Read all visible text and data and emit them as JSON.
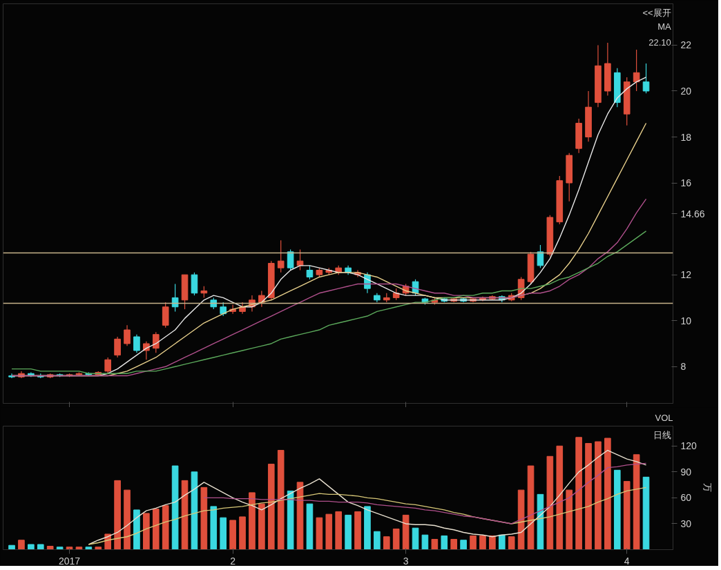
{
  "chart_data": [
    {
      "type": "candlestick",
      "annotations": [
        "<<展开",
        "MA",
        "22.10"
      ],
      "categories": [
        null,
        null,
        null,
        null,
        null,
        null,
        "2017",
        null,
        null,
        null,
        null,
        null,
        null,
        null,
        null,
        null,
        null,
        null,
        null,
        null,
        null,
        null,
        null,
        "2",
        null,
        null,
        null,
        null,
        null,
        null,
        null,
        null,
        null,
        null,
        null,
        null,
        null,
        null,
        null,
        null,
        null,
        "3",
        null,
        null,
        null,
        null,
        null,
        null,
        null,
        null,
        null,
        null,
        null,
        null,
        null,
        null,
        null,
        null,
        null,
        null,
        null,
        null,
        null,
        null,
        "4",
        null,
        null
      ],
      "ohlc": [
        [
          7.6,
          7.7,
          7.5,
          7.55
        ],
        [
          7.55,
          7.8,
          7.5,
          7.7
        ],
        [
          7.7,
          7.75,
          7.55,
          7.6
        ],
        [
          7.6,
          7.7,
          7.5,
          7.55
        ],
        [
          7.55,
          7.7,
          7.5,
          7.65
        ],
        [
          7.65,
          7.7,
          7.55,
          7.6
        ],
        [
          7.6,
          7.7,
          7.55,
          7.65
        ],
        [
          7.65,
          7.75,
          7.6,
          7.7
        ],
        [
          7.7,
          7.75,
          7.6,
          7.65
        ],
        [
          7.65,
          7.8,
          7.6,
          7.75
        ],
        [
          7.8,
          8.4,
          7.7,
          8.3
        ],
        [
          8.5,
          9.3,
          8.4,
          9.2
        ],
        [
          9.0,
          9.8,
          8.9,
          9.6
        ],
        [
          9.3,
          9.4,
          8.6,
          8.7
        ],
        [
          8.7,
          9.1,
          8.3,
          9.0
        ],
        [
          8.8,
          9.5,
          8.6,
          9.4
        ],
        [
          9.8,
          10.8,
          9.7,
          10.6
        ],
        [
          11.0,
          11.6,
          10.4,
          10.6
        ],
        [
          10.9,
          12.0,
          10.5,
          12.0
        ],
        [
          12.0,
          12.1,
          11.1,
          11.2
        ],
        [
          11.2,
          11.5,
          11.0,
          11.3
        ],
        [
          10.9,
          11.0,
          10.5,
          10.6
        ],
        [
          10.6,
          10.8,
          10.2,
          10.3
        ],
        [
          10.4,
          10.7,
          10.3,
          10.5
        ],
        [
          10.4,
          10.8,
          10.3,
          10.6
        ],
        [
          10.6,
          11.1,
          10.4,
          10.9
        ],
        [
          10.8,
          11.3,
          10.6,
          11.1
        ],
        [
          11.0,
          12.6,
          10.9,
          12.5
        ],
        [
          12.3,
          13.5,
          12.1,
          12.6
        ],
        [
          13.0,
          13.1,
          12.2,
          12.3
        ],
        [
          12.4,
          13.1,
          12.2,
          12.6
        ],
        [
          12.2,
          12.4,
          11.8,
          11.9
        ],
        [
          12.0,
          12.3,
          11.9,
          12.2
        ],
        [
          12.1,
          12.3,
          12.0,
          12.2
        ],
        [
          12.1,
          12.4,
          12.0,
          12.3
        ],
        [
          12.3,
          12.4,
          12.0,
          12.1
        ],
        [
          12.0,
          12.2,
          11.9,
          12.1
        ],
        [
          12.0,
          12.1,
          11.2,
          11.4
        ],
        [
          11.1,
          11.2,
          10.8,
          10.9
        ],
        [
          10.9,
          11.2,
          10.8,
          11.0
        ],
        [
          11.0,
          11.4,
          10.9,
          11.2
        ],
        [
          11.2,
          11.6,
          11.1,
          11.5
        ],
        [
          11.7,
          11.8,
          11.1,
          11.2
        ],
        [
          10.95,
          11.0,
          10.7,
          10.8
        ],
        [
          10.8,
          11.0,
          10.7,
          10.9
        ],
        [
          10.95,
          11.0,
          10.8,
          10.85
        ],
        [
          10.85,
          11.0,
          10.8,
          10.95
        ],
        [
          10.95,
          11.0,
          10.8,
          10.85
        ],
        [
          10.85,
          11.0,
          10.8,
          10.95
        ],
        [
          10.9,
          11.05,
          10.85,
          11.0
        ],
        [
          10.95,
          11.1,
          10.9,
          11.05
        ],
        [
          11.05,
          11.1,
          10.8,
          10.9
        ],
        [
          10.9,
          11.2,
          10.85,
          11.1
        ],
        [
          11.0,
          11.9,
          10.9,
          11.8
        ],
        [
          11.7,
          13.0,
          11.6,
          12.9
        ],
        [
          13.0,
          13.3,
          12.3,
          12.4
        ],
        [
          12.9,
          14.6,
          12.8,
          14.5
        ],
        [
          14.3,
          16.3,
          14.2,
          16.1
        ],
        [
          16.0,
          17.3,
          15.2,
          17.2
        ],
        [
          17.5,
          18.8,
          17.3,
          18.6
        ],
        [
          18.0,
          20.0,
          17.8,
          19.3
        ],
        [
          19.5,
          22.0,
          19.3,
          21.1
        ],
        [
          20.0,
          22.1,
          19.8,
          21.2
        ],
        [
          20.8,
          21.0,
          19.3,
          19.5
        ],
        [
          19.0,
          20.6,
          18.5,
          20.4
        ],
        [
          20.4,
          21.8,
          20.0,
          20.8
        ],
        [
          20.4,
          21.2,
          19.9,
          20.0
        ]
      ],
      "colors": [
        "#3ad8e0",
        "#e0503c",
        "#3ad8e0",
        "#3ad8e0",
        "#e0503c",
        "#3ad8e0",
        "#e0503c",
        "#e0503c",
        "#3ad8e0",
        "#e0503c",
        "#e0503c",
        "#e0503c",
        "#e0503c",
        "#3ad8e0",
        "#e0503c",
        "#e0503c",
        "#e0503c",
        "#3ad8e0",
        "#e0503c",
        "#3ad8e0",
        "#e0503c",
        "#3ad8e0",
        "#3ad8e0",
        "#e0503c",
        "#e0503c",
        "#e0503c",
        "#e0503c",
        "#e0503c",
        "#e0503c",
        "#3ad8e0",
        "#e0503c",
        "#3ad8e0",
        "#e0503c",
        "#e0503c",
        "#e0503c",
        "#3ad8e0",
        "#e0503c",
        "#3ad8e0",
        "#3ad8e0",
        "#e0503c",
        "#e0503c",
        "#e0503c",
        "#3ad8e0",
        "#3ad8e0",
        "#e0503c",
        "#3ad8e0",
        "#e0503c",
        "#3ad8e0",
        "#e0503c",
        "#e0503c",
        "#e0503c",
        "#3ad8e0",
        "#e0503c",
        "#e0503c",
        "#e0503c",
        "#3ad8e0",
        "#e0503c",
        "#e0503c",
        "#e0503c",
        "#e0503c",
        "#e0503c",
        "#e0503c",
        "#e0503c",
        "#3ad8e0",
        "#e0503c",
        "#e0503c",
        "#3ad8e0"
      ],
      "series": [
        {
          "type": "line",
          "color": "#e8e8e8",
          "values": [
            7.6,
            7.6,
            7.6,
            7.6,
            7.6,
            7.6,
            7.6,
            7.6,
            7.6,
            7.6,
            7.7,
            7.9,
            8.2,
            8.5,
            8.8,
            9.0,
            9.3,
            9.6,
            10.1,
            10.5,
            10.9,
            11.1,
            11.0,
            10.8,
            10.6,
            10.6,
            10.8,
            11.2,
            11.8,
            12.2,
            12.4,
            12.4,
            12.3,
            12.2,
            12.1,
            12.1,
            12.0,
            11.8,
            11.6,
            11.4,
            11.2,
            11.1,
            11.1,
            11.1,
            11.0,
            10.9,
            10.9,
            10.9,
            10.9,
            10.9,
            10.9,
            10.9,
            11.0,
            11.2,
            11.6,
            12.1,
            12.7,
            13.6,
            14.6,
            15.7,
            16.9,
            18.1,
            19.0,
            19.7,
            20.1,
            20.4,
            20.6
          ]
        },
        {
          "type": "line",
          "color": "#e8d08c",
          "values": [
            7.6,
            7.6,
            7.6,
            7.6,
            7.6,
            7.6,
            7.6,
            7.6,
            7.6,
            7.6,
            7.6,
            7.7,
            7.8,
            8.0,
            8.2,
            8.4,
            8.7,
            9.0,
            9.3,
            9.6,
            9.9,
            10.1,
            10.3,
            10.5,
            10.6,
            10.7,
            10.8,
            10.9,
            11.1,
            11.3,
            11.5,
            11.7,
            11.9,
            12.0,
            12.1,
            12.1,
            12.1,
            12.0,
            11.9,
            11.7,
            11.5,
            11.3,
            11.2,
            11.1,
            11.0,
            11.0,
            11.0,
            11.0,
            11.0,
            11.0,
            11.0,
            11.0,
            11.0,
            11.1,
            11.2,
            11.4,
            11.7,
            12.0,
            12.5,
            13.1,
            13.8,
            14.6,
            15.4,
            16.2,
            17.0,
            17.8,
            18.6
          ]
        },
        {
          "type": "line",
          "color": "#b0508c",
          "values": [
            7.6,
            7.6,
            7.6,
            7.6,
            7.6,
            7.6,
            7.6,
            7.6,
            7.6,
            7.6,
            7.6,
            7.6,
            7.6,
            7.7,
            7.8,
            7.9,
            8.0,
            8.2,
            8.4,
            8.6,
            8.8,
            9.0,
            9.2,
            9.4,
            9.6,
            9.8,
            10.0,
            10.2,
            10.4,
            10.6,
            10.8,
            11.0,
            11.2,
            11.3,
            11.4,
            11.5,
            11.6,
            11.6,
            11.6,
            11.6,
            11.6,
            11.5,
            11.4,
            11.3,
            11.2,
            11.2,
            11.1,
            11.1,
            11.0,
            11.0,
            11.0,
            11.0,
            11.0,
            11.1,
            11.2,
            11.2,
            11.3,
            11.5,
            11.8,
            12.0,
            12.3,
            12.7,
            13.0,
            13.4,
            14.0,
            14.7,
            15.3
          ]
        },
        {
          "type": "line",
          "color": "#5caa5c",
          "values": [
            7.9,
            7.9,
            7.9,
            7.8,
            7.8,
            7.8,
            7.8,
            7.8,
            7.7,
            7.7,
            7.7,
            7.7,
            7.7,
            7.8,
            7.8,
            7.8,
            7.9,
            8.0,
            8.1,
            8.2,
            8.3,
            8.4,
            8.5,
            8.6,
            8.7,
            8.8,
            8.9,
            9.0,
            9.2,
            9.3,
            9.4,
            9.5,
            9.6,
            9.8,
            9.9,
            10.0,
            10.1,
            10.2,
            10.4,
            10.5,
            10.6,
            10.7,
            10.8,
            10.8,
            10.9,
            11.0,
            11.0,
            11.1,
            11.1,
            11.2,
            11.2,
            11.3,
            11.3,
            11.4,
            11.4,
            11.5,
            11.6,
            11.8,
            11.9,
            12.1,
            12.3,
            12.5,
            12.8,
            13.0,
            13.3,
            13.6,
            13.9
          ]
        }
      ],
      "ref_lines": [
        {
          "axis": "y",
          "value": 12.95,
          "color": "#c8b48c"
        },
        {
          "axis": "y",
          "value": 10.76,
          "color": "#c8b48c"
        }
      ],
      "ylim": [
        6.4,
        23.8
      ],
      "yticks": [
        8,
        10,
        12,
        {
          "value": 14.66,
          "label": "14.66"
        },
        16,
        18,
        20,
        22
      ],
      "tick_labels": "y",
      "grid": false
    },
    {
      "type": "bar",
      "title": "VOL",
      "ylabel": "万",
      "annotations": [
        "日线"
      ],
      "categories": [
        null,
        null,
        null,
        null,
        null,
        null,
        "2017",
        null,
        null,
        null,
        null,
        null,
        null,
        null,
        null,
        null,
        null,
        null,
        null,
        null,
        null,
        null,
        null,
        "2",
        null,
        null,
        null,
        null,
        null,
        null,
        null,
        null,
        null,
        null,
        null,
        null,
        null,
        null,
        null,
        null,
        null,
        "3",
        null,
        null,
        null,
        null,
        null,
        null,
        null,
        null,
        null,
        null,
        null,
        null,
        null,
        null,
        null,
        null,
        null,
        null,
        null,
        null,
        null,
        null,
        "4",
        null,
        null
      ],
      "values": [
        5,
        11,
        6,
        6,
        4,
        3,
        3,
        3,
        3,
        3,
        18,
        80,
        69,
        46,
        42,
        47,
        51,
        97,
        80,
        90,
        72,
        50,
        37,
        34,
        38,
        66,
        53,
        99,
        115,
        68,
        78,
        53,
        37,
        41,
        44,
        40,
        44,
        50,
        21,
        15,
        24,
        40,
        25,
        17,
        12,
        16,
        12,
        11,
        16,
        16,
        16,
        17,
        15,
        69,
        97,
        64,
        108,
        120,
        69,
        130,
        123,
        125,
        129,
        92,
        79,
        110,
        84
      ],
      "colors": [
        "#3ad8e0",
        "#e0503c",
        "#3ad8e0",
        "#3ad8e0",
        "#e0503c",
        "#3ad8e0",
        "#e0503c",
        "#e0503c",
        "#3ad8e0",
        "#e0503c",
        "#e0503c",
        "#e0503c",
        "#e0503c",
        "#3ad8e0",
        "#e0503c",
        "#e0503c",
        "#e0503c",
        "#3ad8e0",
        "#e0503c",
        "#3ad8e0",
        "#e0503c",
        "#3ad8e0",
        "#3ad8e0",
        "#e0503c",
        "#e0503c",
        "#e0503c",
        "#e0503c",
        "#e0503c",
        "#e0503c",
        "#3ad8e0",
        "#e0503c",
        "#3ad8e0",
        "#e0503c",
        "#e0503c",
        "#e0503c",
        "#3ad8e0",
        "#e0503c",
        "#3ad8e0",
        "#3ad8e0",
        "#e0503c",
        "#e0503c",
        "#e0503c",
        "#3ad8e0",
        "#3ad8e0",
        "#e0503c",
        "#3ad8e0",
        "#e0503c",
        "#3ad8e0",
        "#e0503c",
        "#e0503c",
        "#e0503c",
        "#3ad8e0",
        "#e0503c",
        "#e0503c",
        "#e0503c",
        "#3ad8e0",
        "#e0503c",
        "#e0503c",
        "#e0503c",
        "#e0503c",
        "#e0503c",
        "#e0503c",
        "#e0503c",
        "#3ad8e0",
        "#e0503c",
        "#e0503c",
        "#3ad8e0"
      ],
      "series": [
        {
          "type": "line",
          "color": "#e8e0d0",
          "values": [
            null,
            null,
            null,
            null,
            null,
            null,
            null,
            null,
            6,
            11,
            15,
            20,
            28,
            37,
            45,
            48,
            52,
            55,
            63,
            70,
            78,
            72,
            66,
            60,
            55,
            51,
            46,
            52,
            59,
            65,
            71,
            76,
            82,
            73,
            64,
            55,
            51,
            46,
            42,
            38,
            34,
            30,
            29,
            29,
            28,
            25,
            23,
            20,
            18,
            17,
            15,
            17,
            18,
            20,
            30,
            40,
            50,
            63,
            77,
            90,
            98,
            107,
            115,
            110,
            105,
            102,
            98
          ]
        },
        {
          "type": "line",
          "color": "#d8c878",
          "values": [
            null,
            null,
            null,
            null,
            null,
            null,
            null,
            null,
            6,
            8,
            11,
            13,
            15,
            19,
            24,
            28,
            32,
            35,
            39,
            42,
            45,
            46,
            48,
            49,
            50,
            52,
            54,
            55,
            57,
            59,
            61,
            63,
            65,
            64,
            64,
            63,
            62,
            60,
            59,
            57,
            55,
            53,
            52,
            50,
            48,
            46,
            43,
            41,
            38,
            36,
            34,
            32,
            30,
            32,
            34,
            36,
            38,
            41,
            44,
            47,
            50,
            55,
            59,
            64,
            68,
            70,
            72
          ]
        },
        {
          "type": "line",
          "color": "#b0508c",
          "values": [
            null,
            null,
            null,
            null,
            null,
            null,
            null,
            null,
            null,
            null,
            null,
            null,
            null,
            null,
            null,
            null,
            null,
            null,
            null,
            null,
            60,
            60,
            60,
            59,
            59,
            59,
            58,
            58,
            58,
            58,
            57,
            57,
            56,
            56,
            55,
            55,
            55,
            54,
            52,
            51,
            50,
            49,
            48,
            46,
            45,
            43,
            41,
            39,
            38,
            36,
            34,
            32,
            30,
            35,
            40,
            45,
            50,
            55,
            60,
            69,
            78,
            86,
            95,
            96,
            98,
            99,
            100
          ]
        }
      ],
      "ylim": [
        0,
        143
      ],
      "yticks": [
        30,
        60,
        90,
        120
      ],
      "grid": false
    }
  ]
}
